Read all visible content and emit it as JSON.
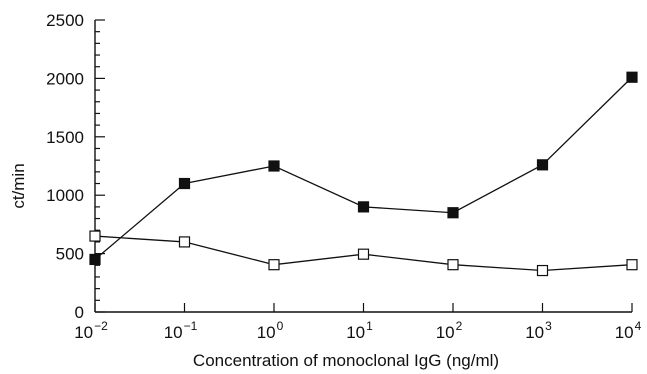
{
  "chart_data": {
    "type": "line",
    "title": "",
    "xlabel": "Concentration of monoclonal IgG (ng/ml)",
    "ylabel": "ct/min",
    "x_scale": "log",
    "x": [
      0.01,
      0.1,
      1,
      10,
      100,
      1000,
      10000
    ],
    "x_tick_labels": [
      {
        "base": "10",
        "exp": "−2"
      },
      {
        "base": "10",
        "exp": "−1"
      },
      {
        "base": "10",
        "exp": "0"
      },
      {
        "base": "10",
        "exp": "1"
      },
      {
        "base": "10",
        "exp": "2"
      },
      {
        "base": "10",
        "exp": "3"
      },
      {
        "base": "10",
        "exp": "4"
      }
    ],
    "y_ticks": [
      "0",
      "500",
      "1000",
      "1500",
      "2000",
      "2500"
    ],
    "xlim": [
      0.01,
      10000
    ],
    "ylim": [
      0,
      2500
    ],
    "grid": false,
    "legend": false,
    "series": [
      {
        "marker": "filled-square",
        "values": [
          450,
          1100,
          1250,
          900,
          850,
          1260,
          2010
        ]
      },
      {
        "marker": "open-square",
        "values": [
          650,
          600,
          405,
          495,
          405,
          355,
          405
        ]
      }
    ],
    "colors": {
      "line": "#111111",
      "filled_marker": "#111111",
      "open_marker_fill": "#ffffff"
    }
  }
}
